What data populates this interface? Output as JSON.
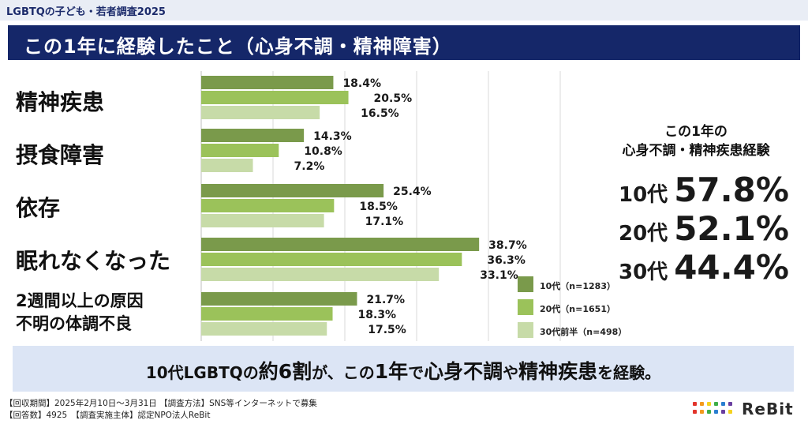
{
  "header": {
    "survey_name": "LGBTQの子ども・若者調査2025",
    "title": "この1年に経験したこと（心身不調・精神障害）"
  },
  "chart_data": {
    "type": "bar",
    "orientation": "horizontal",
    "categories": [
      "精神疾患",
      "摂食障害",
      "依存",
      "眠れなくなった",
      "2週間以上の原因不明の体調不良"
    ],
    "category_lines": [
      [
        "精神疾患"
      ],
      [
        "摂食障害"
      ],
      [
        "依存"
      ],
      [
        "眠れなくなった"
      ],
      [
        "2週間以上の原因",
        "不明の体調不良"
      ]
    ],
    "series": [
      {
        "name": "10代（n=1283）",
        "color": "#7a9a4b",
        "values": [
          18.4,
          14.3,
          25.4,
          38.7,
          21.7
        ],
        "labels": [
          "18.4%",
          "14.3%",
          "25.4%",
          "38.7%",
          "21.7%"
        ]
      },
      {
        "name": "20代（n=1651）",
        "color": "#9bc25a",
        "values": [
          20.5,
          10.8,
          18.5,
          36.3,
          18.3
        ],
        "labels": [
          "20.5%",
          "10.8%",
          "18.5%",
          "36.3%",
          "18.3%"
        ]
      },
      {
        "name": "30代前半（n=498）",
        "color": "#c7dba8",
        "values": [
          16.5,
          7.2,
          17.1,
          33.1,
          17.5
        ],
        "labels": [
          "16.5%",
          "7.2%",
          "17.1%",
          "33.1%",
          "17.5%"
        ]
      }
    ],
    "xlim": [
      0,
      50
    ],
    "gridlines": true,
    "legend_position": "bottom-right"
  },
  "side_panel": {
    "title_line1": "この1年の",
    "title_line2": "心身不調・精神疾患経験",
    "stats": [
      {
        "age": "10代",
        "value": "57.8%"
      },
      {
        "age": "20代",
        "value": "52.1%"
      },
      {
        "age": "30代",
        "value": "44.4%"
      }
    ]
  },
  "banner": {
    "part1": "10代LGBTQの",
    "part2": "約6割",
    "part3": "が、この",
    "part4": "1年",
    "part5": "で",
    "part6": "心身不調",
    "part7": "や",
    "part8": "精神疾患",
    "part9": "を経験。"
  },
  "footer": {
    "line1": "【回収期間】2025年2月10日～3月31日 【調査方法】SNS等インターネットで募集",
    "line2": "【回答数】4925　【調査実施主体】認定NPO法人ReBit"
  },
  "logo": {
    "text": "ReBit",
    "dot_colors": [
      "#e2342b",
      "#f39a1e",
      "#f5d21f",
      "#3fae49",
      "#2a7fd0",
      "#6a3fa0",
      "#e2342b",
      "#f39a1e",
      "#3fae49",
      "#2a7fd0",
      "#6a3fa0",
      "#f5d21f"
    ]
  }
}
